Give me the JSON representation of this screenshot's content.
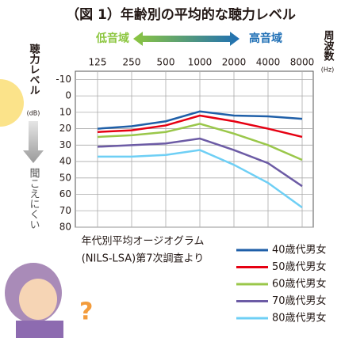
{
  "chart_data": {
    "type": "line",
    "title": "（図 1）年齢別の平均的な聴力レベル",
    "low_label": "低音域",
    "high_label": "高音域",
    "y_label": "聴力レベル",
    "y_unit": "(dB)",
    "x_label": "周波数",
    "x_unit": "(Hz)",
    "down_label": "聞こえにくい",
    "note": [
      "年代別平均オージオグラム",
      "(NILS-LSA)第7次調査より"
    ],
    "categories": [
      "125",
      "250",
      "500",
      "1000",
      "2000",
      "4000",
      "8000"
    ],
    "ylim": [
      -15,
      80
    ],
    "yticks": [
      -10,
      0,
      10,
      20,
      30,
      40,
      50,
      60,
      70,
      80
    ],
    "y_inverted": true,
    "grid": true,
    "series": [
      {
        "name": "40歳代男女",
        "color": "#1f5fa8",
        "values": [
          20,
          18.5,
          15.5,
          9.5,
          12,
          12.5,
          14
        ]
      },
      {
        "name": "50歳代男女",
        "color": "#e60012",
        "values": [
          22,
          21,
          18,
          12,
          15.5,
          20,
          25
        ]
      },
      {
        "name": "60歳代男女",
        "color": "#9ac74a",
        "values": [
          25,
          24,
          22,
          17,
          23,
          30,
          39
        ]
      },
      {
        "name": "70歳代男女",
        "color": "#6c5ba5",
        "values": [
          31,
          30,
          29,
          26,
          33,
          41,
          55
        ]
      },
      {
        "name": "80歳代男女",
        "color": "#6ecff5",
        "values": [
          37,
          37,
          36,
          33,
          42,
          53,
          68
        ]
      }
    ]
  }
}
